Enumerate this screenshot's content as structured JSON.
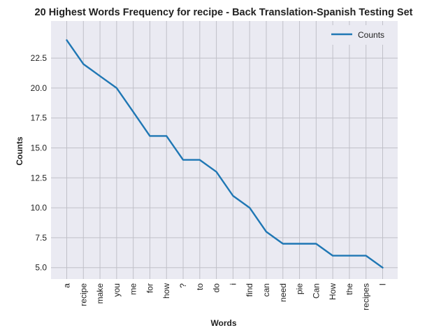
{
  "chart_data": {
    "type": "line",
    "title": "20 Highest Words Frequency for recipe - Back Translation-Spanish Testing Set",
    "xlabel": "Words",
    "ylabel": "Counts",
    "categories": [
      "a",
      "recipe",
      "make",
      "you",
      "me",
      "for",
      "how",
      "?",
      "to",
      "do",
      "i",
      "find",
      "can",
      "need",
      "pie",
      "Can",
      "How",
      "the",
      "recipes",
      "I"
    ],
    "series": [
      {
        "name": "Counts",
        "values": [
          24,
          22,
          21,
          20,
          18,
          16,
          16,
          14,
          14,
          13,
          11,
          10,
          8,
          7,
          7,
          7,
          6,
          6,
          6,
          5
        ],
        "color": "#1f77b4"
      }
    ],
    "ylim": [
      4.05,
      25.6
    ],
    "yticks": [
      "5.0",
      "7.5",
      "10.0",
      "12.5",
      "15.0",
      "17.5",
      "20.0",
      "22.5"
    ],
    "ytick_values": [
      5,
      7.5,
      10,
      12.5,
      15,
      17.5,
      20,
      22.5
    ],
    "grid": true,
    "legend": "top-right",
    "plot_background": "#eaeaf2",
    "grid_color": "#c0c0c8"
  }
}
